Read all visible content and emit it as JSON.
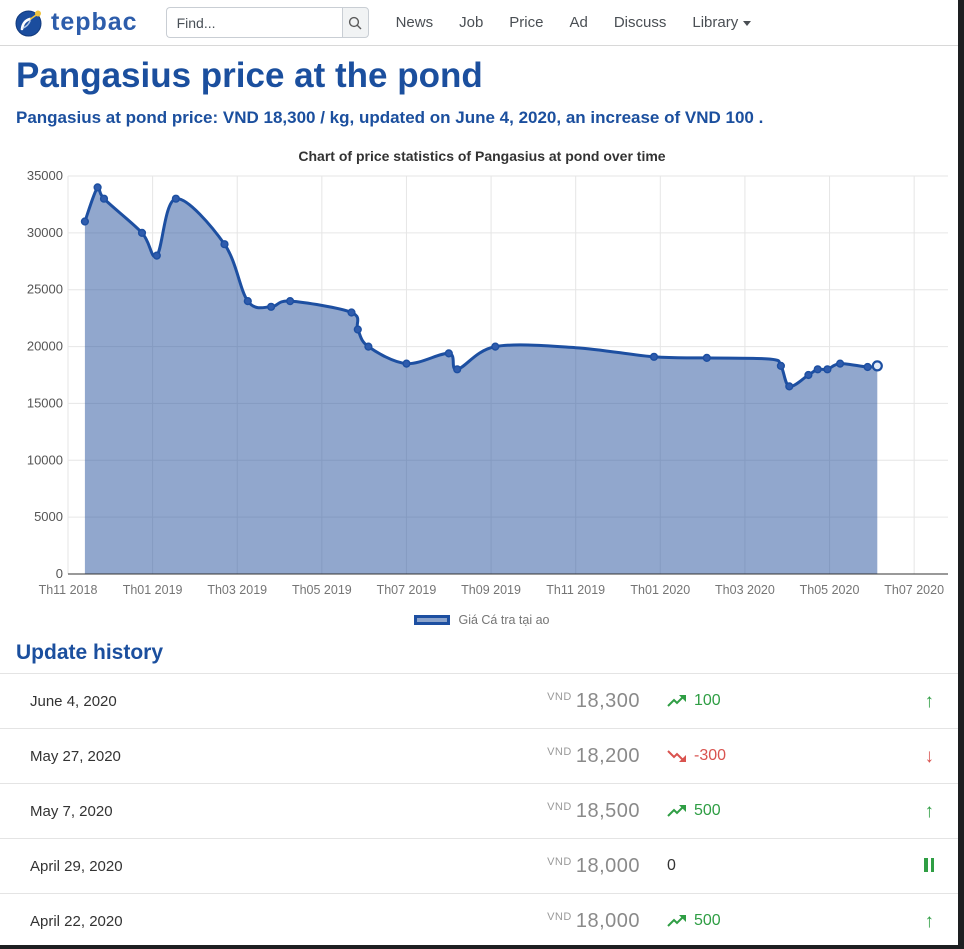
{
  "header": {
    "brand": "tepbac",
    "search_placeholder": "Find...",
    "nav": [
      "News",
      "Job",
      "Price",
      "Ad",
      "Discuss",
      "Library"
    ]
  },
  "page": {
    "title": "Pangasius price at the pond",
    "subtitle": "Pangasius at pond price: VND 18,300 / kg, updated on June 4, 2020, an increase of VND 100 ."
  },
  "chart_data": {
    "type": "area",
    "title": "Chart of price statistics of Pangasius at pond over time",
    "legend": "Giá Cá tra tại ao",
    "legend_position": "bottom",
    "grid": true,
    "ylabel": "",
    "xlabel": "",
    "ylim": [
      0,
      35000
    ],
    "y_ticks": [
      0,
      5000,
      10000,
      15000,
      20000,
      25000,
      30000,
      35000
    ],
    "x_ticks": [
      "Th11 2018",
      "Th01 2019",
      "Th03 2019",
      "Th05 2019",
      "Th07 2019",
      "Th09 2019",
      "Th11 2019",
      "Th01 2020",
      "Th03 2020",
      "Th05 2020",
      "Th07 2020"
    ],
    "x_tick_positions": [
      0,
      2,
      4,
      6,
      8,
      10,
      12,
      14,
      16,
      18,
      20
    ],
    "xlim": [
      0,
      20.8
    ],
    "x_unit": "months since Th11 2018",
    "points": [
      [
        0.4,
        31000,
        1
      ],
      [
        0.7,
        34000,
        1
      ],
      [
        0.85,
        33000,
        1
      ],
      [
        1.75,
        30000,
        1
      ],
      [
        2.1,
        28000,
        1
      ],
      [
        2.55,
        33000,
        1
      ],
      [
        3.7,
        29000,
        1
      ],
      [
        4.25,
        24000,
        1
      ],
      [
        4.8,
        23500,
        1
      ],
      [
        5.25,
        24000,
        1
      ],
      [
        6.7,
        23000,
        1
      ],
      [
        6.85,
        21500,
        1
      ],
      [
        7.1,
        20000,
        1
      ],
      [
        8.0,
        18500,
        1
      ],
      [
        9.0,
        19400,
        1
      ],
      [
        9.2,
        18000,
        1
      ],
      [
        10.1,
        20000,
        1
      ],
      [
        12.0,
        19900,
        0
      ],
      [
        13.85,
        19100,
        1
      ],
      [
        15.1,
        19000,
        1
      ],
      [
        16.6,
        18900,
        0
      ],
      [
        16.85,
        18300,
        1
      ],
      [
        17.05,
        16500,
        1
      ],
      [
        17.5,
        17500,
        1
      ],
      [
        17.72,
        18000,
        1
      ],
      [
        17.95,
        18000,
        1
      ],
      [
        18.25,
        18500,
        1
      ],
      [
        18.9,
        18200,
        1
      ],
      [
        19.13,
        18300,
        1
      ]
    ],
    "colors": {
      "line": "#1d4fa1",
      "fill": "rgba(45, 86, 160, 0.52)",
      "marker": "#2f5cad",
      "grid": "#e6e6e6",
      "axis": "#333333",
      "y_label": "#555555",
      "x_label": "#757575"
    }
  },
  "history": {
    "heading": "Update history",
    "currency": "VND",
    "rows": [
      {
        "date": "June 4, 2020",
        "price": "18,300",
        "change": "100",
        "direction": "up"
      },
      {
        "date": "May 27, 2020",
        "price": "18,200",
        "change": "-300",
        "direction": "down"
      },
      {
        "date": "May 7, 2020",
        "price": "18,500",
        "change": "500",
        "direction": "up"
      },
      {
        "date": "April 29, 2020",
        "price": "18,000",
        "change": "0",
        "direction": "flat"
      },
      {
        "date": "April 22, 2020",
        "price": "18,000",
        "change": "500",
        "direction": "up"
      }
    ]
  },
  "theme": {
    "accent_blue": "#1b4f9e",
    "green": "#2f9e44",
    "red": "#d9534f"
  }
}
